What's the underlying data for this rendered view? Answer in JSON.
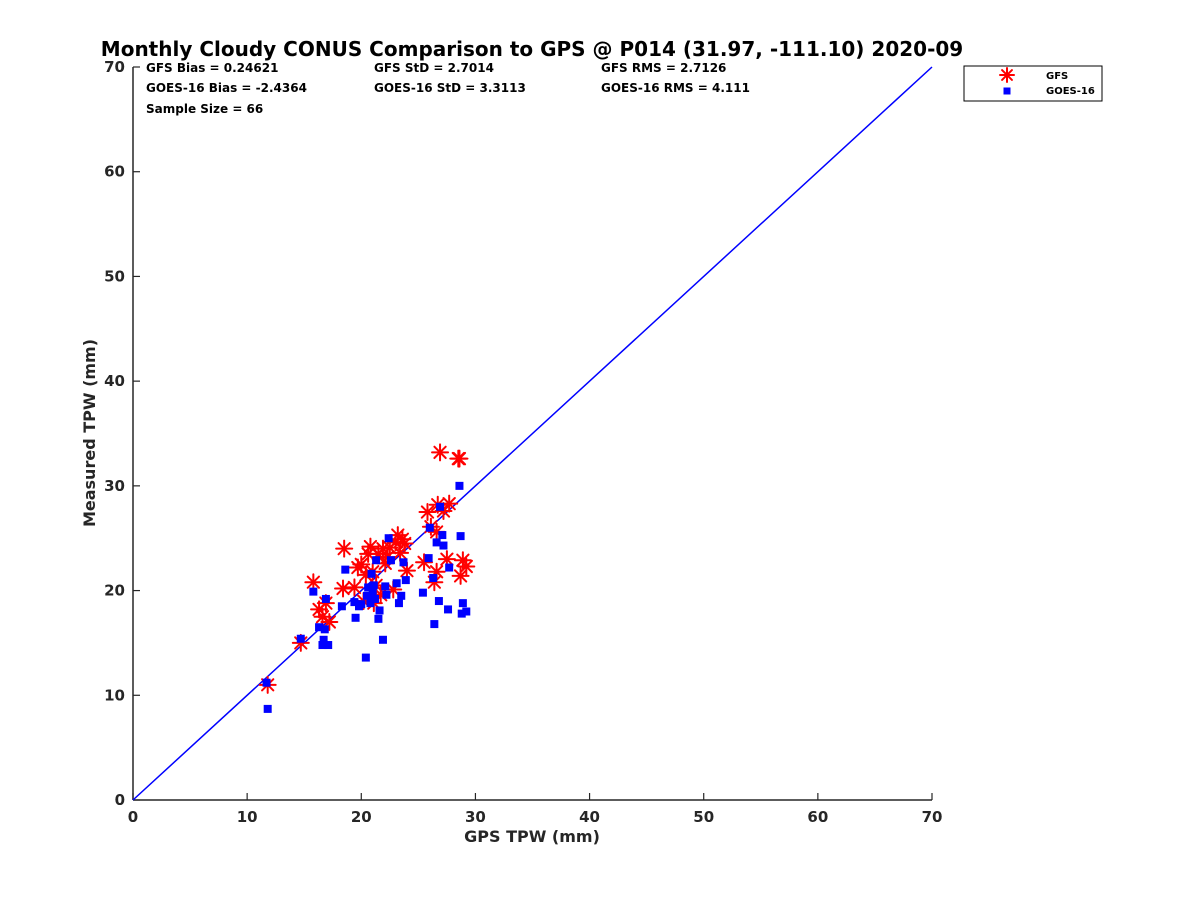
{
  "chart_data": {
    "type": "scatter",
    "title": "Monthly Cloudy CONUS Comparison to GPS @ P014 (31.97, -111.10) 2020-09",
    "xlabel": "GPS TPW (mm)",
    "ylabel": "Measured TPW (mm)",
    "xlim": [
      0,
      70
    ],
    "ylim": [
      0,
      70
    ],
    "xticks": [
      0,
      10,
      20,
      30,
      40,
      50,
      60,
      70
    ],
    "yticks": [
      0,
      10,
      20,
      30,
      40,
      50,
      60,
      70
    ],
    "xtick_labels": [
      "0",
      "10",
      "20",
      "30",
      "40",
      "50",
      "60",
      "70"
    ],
    "ytick_labels": [
      "0",
      "10",
      "20",
      "30",
      "40",
      "50",
      "60",
      "70"
    ],
    "grid": false,
    "legend_position": "top-right (outside)",
    "stats": [
      [
        "GFS Bias = 0.24621",
        "GFS StD = 2.7014",
        "GFS RMS = 2.7126"
      ],
      [
        "GOES-16 Bias = -2.4364",
        "GOES-16 StD = 3.3113",
        "GOES-16 RMS = 4.111"
      ],
      [
        "Sample Size = 66"
      ]
    ],
    "reference_line": {
      "x": [
        0,
        70
      ],
      "y": [
        0,
        70
      ],
      "color": "#0000ff"
    },
    "series": [
      {
        "name": "GFS",
        "marker": "asterisk",
        "color": "#ff0000",
        "points": [
          [
            11.8,
            11.0
          ],
          [
            14.7,
            15.0
          ],
          [
            15.8,
            20.8
          ],
          [
            16.3,
            18.2
          ],
          [
            16.6,
            17.5
          ],
          [
            16.9,
            18.8
          ],
          [
            17.2,
            17.0
          ],
          [
            18.4,
            20.2
          ],
          [
            18.5,
            24.0
          ],
          [
            19.4,
            20.3
          ],
          [
            19.7,
            22.2
          ],
          [
            20.0,
            22.5
          ],
          [
            20.2,
            19.0
          ],
          [
            20.4,
            21.5
          ],
          [
            20.6,
            23.5
          ],
          [
            20.8,
            24.2
          ],
          [
            21.0,
            21.8
          ],
          [
            21.1,
            18.8
          ],
          [
            21.3,
            20.5
          ],
          [
            21.5,
            23.5
          ],
          [
            21.7,
            19.6
          ],
          [
            21.9,
            24.0
          ],
          [
            22.1,
            22.6
          ],
          [
            22.3,
            23.2
          ],
          [
            22.5,
            24.1
          ],
          [
            22.8,
            20.1
          ],
          [
            23.0,
            24.6
          ],
          [
            23.2,
            25.3
          ],
          [
            23.4,
            23.6
          ],
          [
            23.6,
            24.9
          ],
          [
            23.8,
            24.5
          ],
          [
            24.0,
            21.9
          ],
          [
            25.5,
            22.7
          ],
          [
            25.8,
            27.5
          ],
          [
            26.1,
            26.1
          ],
          [
            26.4,
            20.8
          ],
          [
            26.6,
            21.8
          ],
          [
            26.6,
            25.6
          ],
          [
            26.7,
            28.2
          ],
          [
            26.9,
            33.2
          ],
          [
            27.2,
            27.6
          ],
          [
            27.5,
            23.0
          ],
          [
            27.7,
            28.3
          ],
          [
            28.5,
            32.6
          ],
          [
            28.6,
            32.6
          ],
          [
            28.7,
            21.4
          ],
          [
            28.9,
            22.9
          ],
          [
            29.2,
            22.3
          ]
        ]
      },
      {
        "name": "GOES-16",
        "marker": "square",
        "color": "#0000ff",
        "points": [
          [
            11.7,
            11.2
          ],
          [
            11.8,
            8.7
          ],
          [
            14.7,
            15.4
          ],
          [
            15.8,
            19.9
          ],
          [
            16.3,
            16.5
          ],
          [
            16.6,
            14.8
          ],
          [
            16.7,
            15.3
          ],
          [
            16.8,
            16.3
          ],
          [
            16.9,
            19.2
          ],
          [
            17.1,
            14.8
          ],
          [
            18.3,
            18.5
          ],
          [
            18.6,
            22.0
          ],
          [
            19.4,
            18.9
          ],
          [
            19.5,
            17.4
          ],
          [
            19.8,
            18.5
          ],
          [
            20.0,
            18.7
          ],
          [
            20.4,
            13.6
          ],
          [
            20.5,
            19.5
          ],
          [
            20.6,
            20.3
          ],
          [
            20.8,
            18.8
          ],
          [
            20.9,
            21.6
          ],
          [
            21.0,
            19.9
          ],
          [
            21.1,
            20.5
          ],
          [
            21.2,
            19.2
          ],
          [
            21.3,
            22.9
          ],
          [
            21.5,
            17.3
          ],
          [
            21.6,
            18.1
          ],
          [
            21.9,
            15.3
          ],
          [
            22.1,
            20.4
          ],
          [
            22.2,
            19.6
          ],
          [
            22.4,
            25.0
          ],
          [
            22.6,
            22.9
          ],
          [
            23.1,
            20.7
          ],
          [
            23.3,
            18.8
          ],
          [
            23.5,
            19.5
          ],
          [
            23.7,
            22.7
          ],
          [
            23.9,
            21.0
          ],
          [
            25.4,
            19.8
          ],
          [
            25.9,
            23.1
          ],
          [
            26.0,
            26.0
          ],
          [
            26.3,
            21.2
          ],
          [
            26.4,
            16.8
          ],
          [
            26.6,
            24.6
          ],
          [
            26.8,
            19.0
          ],
          [
            26.9,
            28.0
          ],
          [
            27.1,
            25.3
          ],
          [
            27.2,
            24.3
          ],
          [
            27.6,
            18.2
          ],
          [
            27.7,
            22.2
          ],
          [
            28.6,
            30.0
          ],
          [
            28.7,
            25.2
          ],
          [
            28.8,
            17.8
          ],
          [
            28.9,
            18.8
          ],
          [
            29.2,
            18.0
          ]
        ]
      }
    ]
  }
}
